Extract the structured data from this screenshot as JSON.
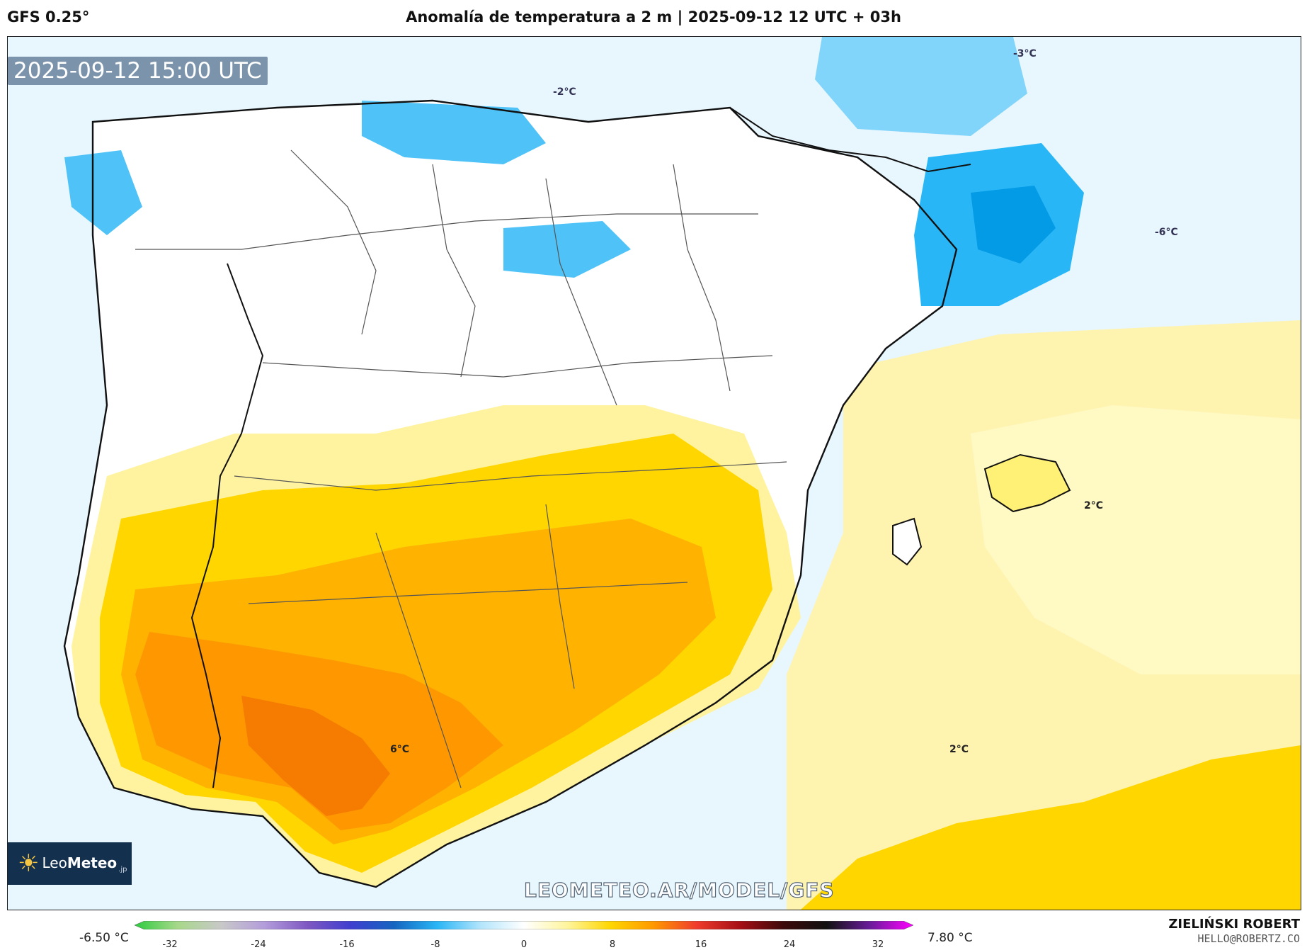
{
  "header": {
    "model": "GFS 0.25°",
    "title": "Anomalía de temperatura a 2 m | 2025-09-12 12 UTC + 03h"
  },
  "map": {
    "valid_time": "2025-09-12 15:00 UTC",
    "contour_labels": [
      "-2°C",
      "-3°C",
      "-6°C",
      "2°C",
      "6°C",
      "2°C"
    ],
    "watermark": "LEOMETEO.AR/MODEL/GFS",
    "logo": {
      "name_a": "Leo",
      "name_b": "Meteo",
      "suffix": ".jp"
    }
  },
  "legend": {
    "min": "-6.50 °C",
    "max": "7.80 °C",
    "ticks": [
      "-32",
      "-24",
      "-16",
      "-8",
      "0",
      "8",
      "16",
      "24",
      "32"
    ],
    "colors": [
      "#2ecc40",
      "#a7d88a",
      "#c8c8c8",
      "#b39ddb",
      "#7e57c2",
      "#3f3fcf",
      "#1565c0",
      "#29b6f6",
      "#b3e5fc",
      "#ffffff",
      "#fff59d",
      "#ffd600",
      "#ff9800",
      "#ef3b2c",
      "#a50f15",
      "#3d0a0a",
      "#111111",
      "#6a1b9a",
      "#ff00ff"
    ]
  },
  "credits": {
    "author": "ZIELIŃSKI ROBERT",
    "contact": "HELLO@ROBERTZ.CO"
  }
}
